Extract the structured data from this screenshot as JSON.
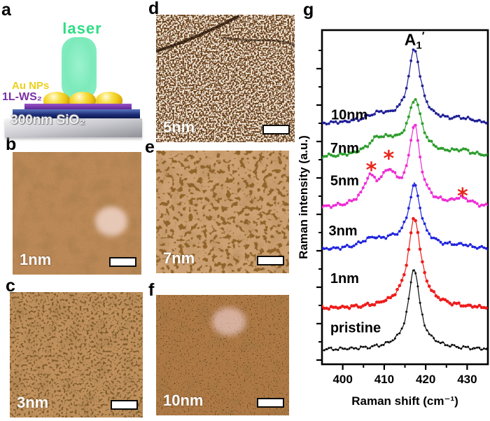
{
  "panels": {
    "a": {
      "letter": "a",
      "schematic": {
        "laser_label": "laser",
        "au_nps_label": "Au NPs",
        "ws2_label": "1L-WS₂",
        "sio2_label": "300nm SiO₂"
      }
    },
    "b": {
      "letter": "b",
      "thickness_label": "1nm"
    },
    "c": {
      "letter": "c",
      "thickness_label": "3nm"
    },
    "d": {
      "letter": "d",
      "thickness_label": "5nm"
    },
    "e": {
      "letter": "e",
      "thickness_label": "7nm"
    },
    "f": {
      "letter": "f",
      "thickness_label": "10nm"
    },
    "g": {
      "letter": "g"
    }
  },
  "colors": {
    "laser_beam": "#7deabb",
    "laser_text": "#2edd85",
    "au_text": "#ecd01d",
    "ws2_text": "#7b2fa6",
    "afm_b_base": "#bd8a58",
    "afm_c_base": "#c3935f",
    "afm_d_base": "#6e421f",
    "afm_e_base": "#cda173",
    "afm_f_base": "#b07a46"
  },
  "chart_data": {
    "type": "line",
    "title": "",
    "xlabel": "Raman shift (cm⁻¹)",
    "ylabel": "Raman intensity (a.u.)",
    "xlim": [
      395,
      435
    ],
    "ylim": [
      0,
      4
    ],
    "grid": false,
    "legend_position": "in-plot-labels",
    "x_major_ticks": [
      400,
      410,
      420,
      430
    ],
    "x_minor_ticks": [
      405,
      415,
      425
    ],
    "marker_step": 0.55,
    "peak_label": {
      "base": "A",
      "sub": "1",
      "prime": "′",
      "x": 417.3,
      "v": 3.82
    },
    "asterisks": {
      "color": "#e8271c",
      "points": [
        {
          "x": 406.9,
          "v": 2.34
        },
        {
          "x": 411.1,
          "v": 2.48
        },
        {
          "x": 428.9,
          "v": 2.03
        }
      ]
    },
    "series": [
      {
        "name": "pristine",
        "color": "#0a0a0a",
        "offset": 0.17,
        "marker_r": 1.5,
        "label_x": 397.0,
        "label_v": 0.44,
        "peaks": [
          [
            417.2,
            0.9,
            1.55
          ],
          [
            417.2,
            0.08,
            6.0
          ]
        ]
      },
      {
        "name": "1nm",
        "color": "#ee1c1c",
        "offset": 0.66,
        "marker_r": 2.3,
        "label_x": 397.0,
        "label_v": 1.03,
        "peaks": [
          [
            417.3,
            1.0,
            1.8
          ],
          [
            417.3,
            0.09,
            7.0
          ]
        ]
      },
      {
        "name": "3nm",
        "color": "#2024dd",
        "offset": 1.36,
        "marker_r": 1.9,
        "label_x": 396.6,
        "label_v": 1.6,
        "peaks": [
          [
            417.3,
            0.7,
            1.7
          ],
          [
            406.8,
            0.1,
            3.0
          ],
          [
            411.5,
            0.05,
            3.0
          ],
          [
            417.3,
            0.07,
            8.0
          ],
          [
            428.8,
            0.035,
            3.0
          ]
        ]
      },
      {
        "name": "5nm",
        "color": "#ef2cd4",
        "offset": 1.86,
        "marker_r": 2.0,
        "label_x": 397.0,
        "label_v": 2.2,
        "peaks": [
          [
            417.3,
            0.9,
            1.6
          ],
          [
            406.5,
            0.29,
            1.9
          ],
          [
            411.1,
            0.35,
            2.4
          ],
          [
            428.8,
            0.095,
            2.6
          ],
          [
            417.0,
            0.05,
            9.0
          ]
        ]
      },
      {
        "name": "7nm",
        "color": "#2e9e2e",
        "offset": 2.47,
        "marker_r": 2.0,
        "label_x": 397.0,
        "label_v": 2.59,
        "peaks": [
          [
            417.4,
            0.62,
            1.9
          ],
          [
            408.3,
            0.16,
            2.8
          ],
          [
            411.8,
            0.1,
            3.0
          ],
          [
            428.8,
            0.06,
            3.0
          ],
          [
            417.0,
            0.05,
            9.0
          ]
        ]
      },
      {
        "name": "10nm",
        "color": "#1f1f96",
        "offset": 2.87,
        "marker_r": 1.9,
        "label_x": 397.2,
        "label_v": 2.99,
        "peaks": [
          [
            417.3,
            0.84,
            1.75
          ],
          [
            408.5,
            0.09,
            3.5
          ],
          [
            428.8,
            0.045,
            3.0
          ],
          [
            417.0,
            0.05,
            9.0
          ]
        ]
      }
    ]
  }
}
